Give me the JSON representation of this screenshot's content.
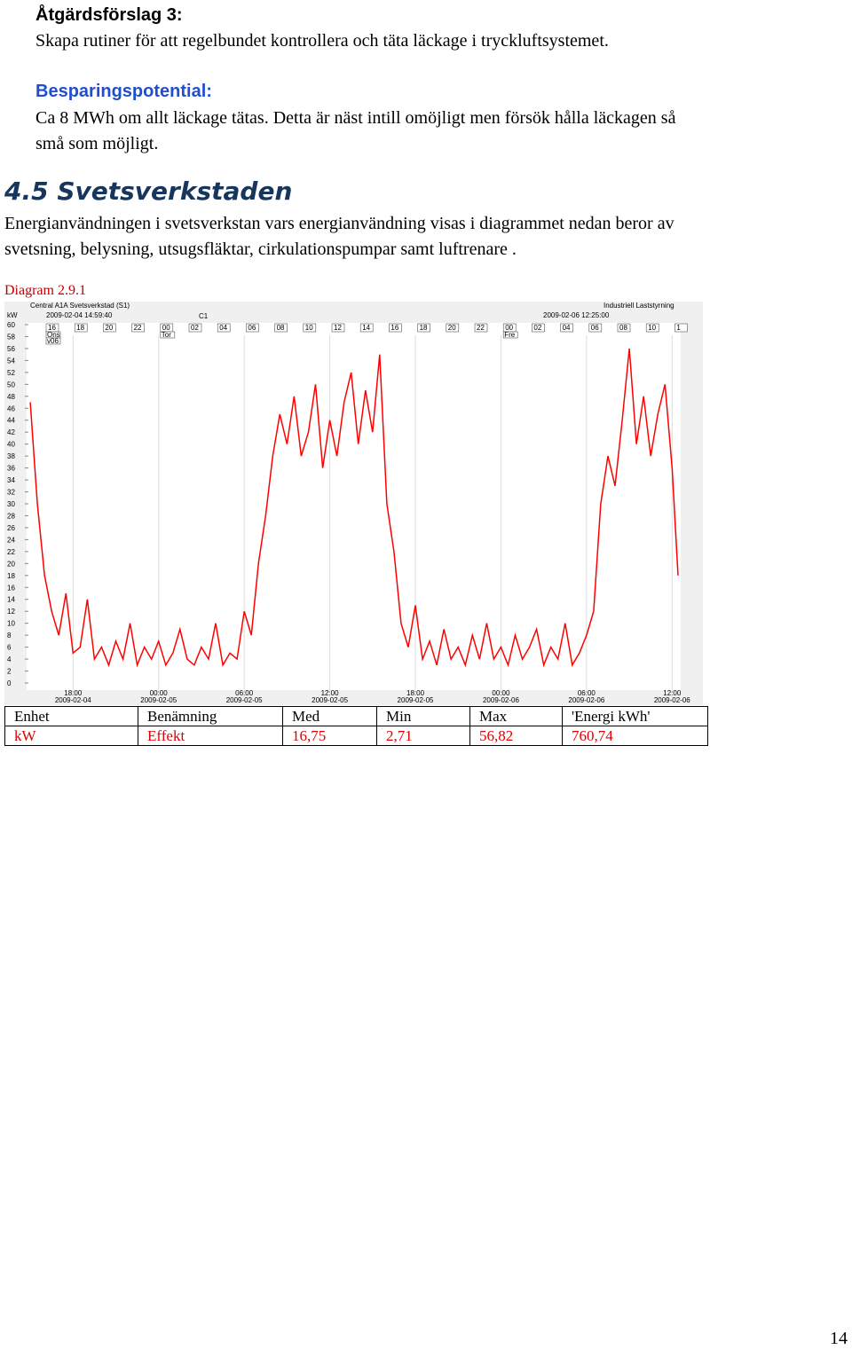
{
  "heading": "Åtgärdsförslag 3:",
  "proposal": "Skapa rutiner för att regelbundet kontrollera och täta läckage i tryckluftsystemet.",
  "savings_heading": "Besparingspotential:",
  "savings_text": [
    "Ca 8 MWh om allt läckage tätas. Detta är näst intill omöjligt men försök hålla läckagen så",
    "små som möjligt."
  ],
  "section_title": "4.5 Svetsverkstaden",
  "section_text": [
    "Energianvändningen i svetsverkstan vars energianvändning visas i diagrammet nedan beror av",
    "svetsning, belysning, utsugsfläktar, cirkulationspumpar samt luftrenare ."
  ],
  "caption": "Diagram 2.9.1",
  "chart_data": {
    "type": "line",
    "title": "Central A1A Svetsverkstad (S1)",
    "source": "Industriell Laststyrning",
    "cursor": "C1",
    "y_label": "kW",
    "xlim": [
      "2009-02-04 14:59:40",
      "2009-02-06 12:25:00"
    ],
    "xticks": [
      {
        "value": "2009-02-04 18:00",
        "label": [
          "18:00",
          "2009-02-04"
        ]
      },
      {
        "value": "2009-02-05 00:00",
        "label": [
          "00:00",
          "2009-02-05"
        ]
      },
      {
        "value": "2009-02-05 06:00",
        "label": [
          "06:00",
          "2009-02-05"
        ]
      },
      {
        "value": "2009-02-05 12:00",
        "label": [
          "12:00",
          "2009-02-05"
        ]
      },
      {
        "value": "2009-02-05 18:00",
        "label": [
          "18:00",
          "2009-02-05"
        ]
      },
      {
        "value": "2009-02-06 00:00",
        "label": [
          "00:00",
          "2009-02-06"
        ]
      },
      {
        "value": "2009-02-06 06:00",
        "label": [
          "06:00",
          "2009-02-06"
        ]
      },
      {
        "value": "2009-02-06 12:00",
        "label": [
          "12:00",
          "2009-02-06"
        ]
      }
    ],
    "ylim": [
      0,
      60
    ],
    "yticks": [
      0,
      2,
      4,
      6,
      8,
      10,
      12,
      14,
      16,
      18,
      20,
      22,
      24,
      26,
      28,
      30,
      32,
      34,
      36,
      38,
      40,
      42,
      44,
      46,
      48,
      50,
      52,
      54,
      56,
      58,
      60
    ],
    "hour_marks": [
      "16",
      "18",
      "20",
      "22",
      "00",
      "02",
      "04",
      "06",
      "08",
      "10",
      "12",
      "14",
      "16",
      "18",
      "20",
      "22",
      "00",
      "02",
      "04",
      "06",
      "08",
      "10",
      "1"
    ],
    "day_marks": [
      [
        "Ons",
        "v06"
      ],
      [
        "Tor"
      ],
      [
        "Fre"
      ]
    ],
    "x": [
      "2009-02-04 15:00",
      "2009-02-04 15:30",
      "2009-02-04 16:00",
      "2009-02-04 16:30",
      "2009-02-04 17:00",
      "2009-02-04 17:30",
      "2009-02-04 18:00",
      "2009-02-04 18:30",
      "2009-02-04 19:00",
      "2009-02-04 19:30",
      "2009-02-04 20:00",
      "2009-02-04 20:30",
      "2009-02-04 21:00",
      "2009-02-04 21:30",
      "2009-02-04 22:00",
      "2009-02-04 22:30",
      "2009-02-04 23:00",
      "2009-02-04 23:30",
      "2009-02-05 00:00",
      "2009-02-05 00:30",
      "2009-02-05 01:00",
      "2009-02-05 01:30",
      "2009-02-05 02:00",
      "2009-02-05 02:30",
      "2009-02-05 03:00",
      "2009-02-05 03:30",
      "2009-02-05 04:00",
      "2009-02-05 04:30",
      "2009-02-05 05:00",
      "2009-02-05 05:30",
      "2009-02-05 06:00",
      "2009-02-05 06:30",
      "2009-02-05 07:00",
      "2009-02-05 07:30",
      "2009-02-05 08:00",
      "2009-02-05 08:30",
      "2009-02-05 09:00",
      "2009-02-05 09:30",
      "2009-02-05 10:00",
      "2009-02-05 10:30",
      "2009-02-05 11:00",
      "2009-02-05 11:30",
      "2009-02-05 12:00",
      "2009-02-05 12:30",
      "2009-02-05 13:00",
      "2009-02-05 13:30",
      "2009-02-05 14:00",
      "2009-02-05 14:30",
      "2009-02-05 15:00",
      "2009-02-05 15:30",
      "2009-02-05 16:00",
      "2009-02-05 16:30",
      "2009-02-05 17:00",
      "2009-02-05 17:30",
      "2009-02-05 18:00",
      "2009-02-05 18:30",
      "2009-02-05 19:00",
      "2009-02-05 19:30",
      "2009-02-05 20:00",
      "2009-02-05 20:30",
      "2009-02-05 21:00",
      "2009-02-05 21:30",
      "2009-02-05 22:00",
      "2009-02-05 22:30",
      "2009-02-05 23:00",
      "2009-02-05 23:30",
      "2009-02-06 00:00",
      "2009-02-06 00:30",
      "2009-02-06 01:00",
      "2009-02-06 01:30",
      "2009-02-06 02:00",
      "2009-02-06 02:30",
      "2009-02-06 03:00",
      "2009-02-06 03:30",
      "2009-02-06 04:00",
      "2009-02-06 04:30",
      "2009-02-06 05:00",
      "2009-02-06 05:30",
      "2009-02-06 06:00",
      "2009-02-06 06:30",
      "2009-02-06 07:00",
      "2009-02-06 07:30",
      "2009-02-06 08:00",
      "2009-02-06 08:30",
      "2009-02-06 09:00",
      "2009-02-06 09:30",
      "2009-02-06 10:00",
      "2009-02-06 10:30",
      "2009-02-06 11:00",
      "2009-02-06 11:30",
      "2009-02-06 12:00",
      "2009-02-06 12:25"
    ],
    "series": [
      {
        "color": "#ff0000",
        "values": [
          47,
          30,
          18,
          12,
          8,
          15,
          5,
          6,
          14,
          4,
          6,
          3,
          7,
          4,
          10,
          3,
          6,
          4,
          7,
          3,
          5,
          9,
          4,
          3,
          6,
          4,
          10,
          3,
          5,
          4,
          12,
          8,
          20,
          28,
          38,
          45,
          40,
          48,
          38,
          42,
          50,
          36,
          44,
          38,
          47,
          52,
          40,
          49,
          42,
          55,
          30,
          22,
          10,
          6,
          13,
          4,
          7,
          3,
          9,
          4,
          6,
          3,
          8,
          4,
          10,
          4,
          6,
          3,
          8,
          4,
          6,
          9,
          3,
          6,
          4,
          10,
          3,
          5,
          8,
          12,
          30,
          38,
          33,
          44,
          56,
          40,
          48,
          38,
          45,
          50,
          36,
          18
        ]
      }
    ]
  },
  "table": {
    "headers": [
      "Enhet",
      "Benämning",
      "Med",
      "Min",
      "Max",
      "'Energi kWh'"
    ],
    "rows": [
      [
        "kW",
        "Effekt",
        "16,75",
        "2,71",
        "56,82",
        "760,74"
      ]
    ]
  },
  "page_number": "14"
}
